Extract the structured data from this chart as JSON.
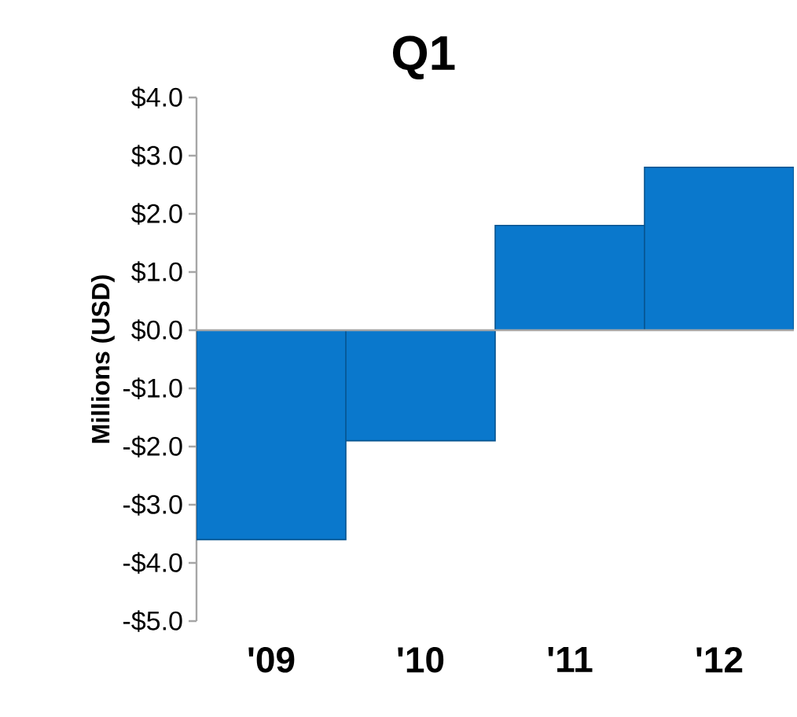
{
  "chart_data": {
    "type": "bar",
    "title": "Q1",
    "ylabel": "Millions (USD)",
    "categories": [
      "'09",
      "'10",
      "'11",
      "'12"
    ],
    "values": [
      -3.6,
      -1.9,
      1.8,
      2.8
    ],
    "color": "#0a78cc",
    "ylim": [
      -5,
      4
    ],
    "yticks": [
      {
        "value": -5,
        "label": "-$5.0"
      },
      {
        "value": -4,
        "label": "-$4.0"
      },
      {
        "value": -3,
        "label": "-$3.0"
      },
      {
        "value": -2,
        "label": "-$2.0"
      },
      {
        "value": -1,
        "label": "-$1.0"
      },
      {
        "value": 0,
        "label": "$0.0"
      },
      {
        "value": 1,
        "label": "$1.0"
      },
      {
        "value": 2,
        "label": "$2.0"
      },
      {
        "value": 3,
        "label": "$3.0"
      },
      {
        "value": 4,
        "label": "$4.0"
      }
    ]
  }
}
